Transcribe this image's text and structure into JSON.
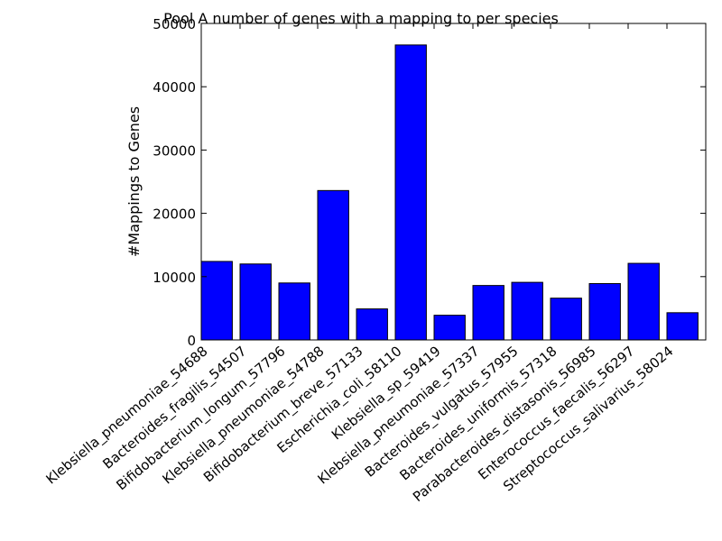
{
  "chart_data": {
    "type": "bar",
    "title": "Pool A number of genes with a mapping to per species",
    "xlabel": "",
    "ylabel": "#Mappings to Genes",
    "ylim": [
      0,
      50000
    ],
    "yticks": [
      0,
      10000,
      20000,
      30000,
      40000,
      50000
    ],
    "grid": false,
    "legend": "none",
    "bar_color": "#0000ff",
    "categories": [
      "Klebsiella_pneumoniae_54688",
      "Bacteroides_fragilis_54507",
      "Bifidobacterium_longum_57796",
      "Klebsiella_pneumoniae_54788",
      "Bifidobacterium_breve_57133",
      "Escherichia_coli_58110",
      "Klebsiella_sp_59419",
      "Klebsiella_pneumoniae_57337",
      "Bacteroides_vulgatus_57955",
      "Bacteroides_uniformis_57318",
      "Parabacteroides_distasonis_56985",
      "Enterococcus_faecalis_56297",
      "Streptococcus_salivarius_58024"
    ],
    "values": [
      12400,
      12000,
      9000,
      23600,
      4900,
      46600,
      3900,
      8600,
      9100,
      6600,
      8900,
      12100,
      4300
    ]
  }
}
